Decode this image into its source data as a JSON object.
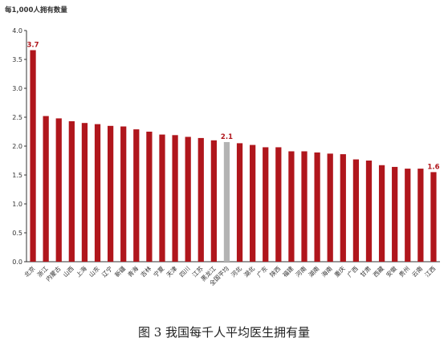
{
  "caption": "图 3 我国每千人平均医生拥有量",
  "chart_data": {
    "type": "bar",
    "ylabel": "每1,000人拥有数量",
    "ylim": [
      0,
      4.0
    ],
    "yticks": [
      "0.0",
      "0.5",
      "1.0",
      "1.5",
      "2.0",
      "2.5",
      "3.0",
      "3.5",
      "4.0"
    ],
    "grid": false,
    "legend": "none",
    "colors": {
      "bar": "#b0161c",
      "highlight": "#b3b3b3",
      "label": "#b0161c"
    },
    "highlight_category": "全国平均",
    "categories": [
      "北京",
      "浙江",
      "内蒙古",
      "山西",
      "上海",
      "山东",
      "辽宁",
      "新疆",
      "青海",
      "吉林",
      "宁夏",
      "天津",
      "四川",
      "江苏",
      "黑龙江",
      "全国平均",
      "河北",
      "湖北",
      "广东",
      "陕西",
      "福建",
      "河南",
      "湖南",
      "海南",
      "重庆",
      "广西",
      "甘肃",
      "西藏",
      "安徽",
      "贵州",
      "云南",
      "江西"
    ],
    "values": [
      3.66,
      2.52,
      2.48,
      2.43,
      2.4,
      2.38,
      2.35,
      2.34,
      2.29,
      2.25,
      2.2,
      2.19,
      2.16,
      2.14,
      2.1,
      2.07,
      2.05,
      2.02,
      1.98,
      1.98,
      1.91,
      1.91,
      1.89,
      1.87,
      1.86,
      1.77,
      1.75,
      1.67,
      1.64,
      1.61,
      1.61,
      1.55
    ],
    "data_labels": [
      {
        "index": 0,
        "text": "3.7"
      },
      {
        "index": 15,
        "text": "2.1"
      },
      {
        "index": 31,
        "text": "1.6"
      }
    ]
  }
}
